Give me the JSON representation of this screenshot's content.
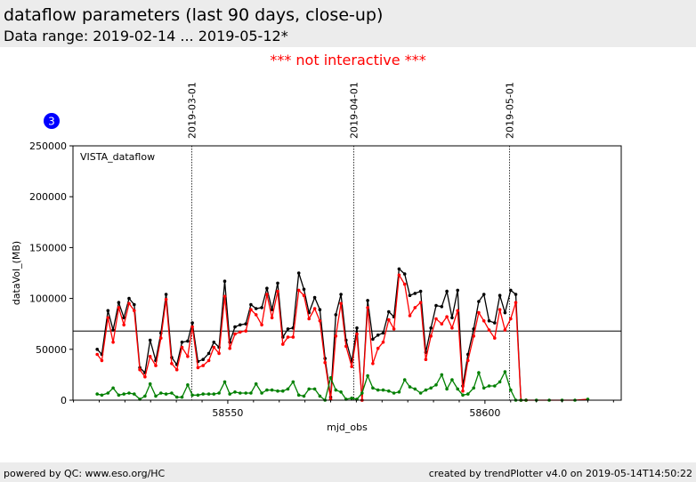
{
  "header": {
    "title": "dataflow parameters (last 90 days, close-up)",
    "subtitle": "Data range: 2019-02-14 ... 2019-05-12*",
    "notice": "*** not interactive ***"
  },
  "badge": {
    "label": "3",
    "color": "#0000ff"
  },
  "footer": {
    "left": "powered by QC: www.eso.org/HC",
    "right": "created by trendPlotter v4.0 on 2019-05-14T14:50:22"
  },
  "colors": {
    "black_series": "#000000",
    "red_series": "#ff0000",
    "green_series": "#008000",
    "reference_line": "#000000"
  },
  "chart_data": {
    "type": "line",
    "panel_label": "VISTA_dataflow",
    "xlabel": "mjd_obs",
    "ylabel": "dataVol_(MB)",
    "xlim": [
      58519.9,
      58626.5
    ],
    "ylim": [
      0,
      250000
    ],
    "x_ticks": [
      58550,
      58600
    ],
    "y_ticks": [
      0,
      50000,
      100000,
      150000,
      200000,
      250000
    ],
    "reference_y": 68000,
    "date_markers": [
      {
        "label": "2019-03-01",
        "x": 58543.0
      },
      {
        "label": "2019-04-01",
        "x": 58574.5
      },
      {
        "label": "2019-05-01",
        "x": 58604.8
      }
    ],
    "x": [
      58524.6,
      58525.5,
      58526.7,
      58527.7,
      58528.8,
      58529.8,
      58530.8,
      58531.8,
      58532.9,
      58533.9,
      58534.9,
      58536.0,
      58537.0,
      58538.0,
      58539.1,
      58540.1,
      58541.1,
      58542.2,
      58543.1,
      58544.2,
      58545.2,
      58546.3,
      58547.3,
      58548.3,
      58549.4,
      58550.4,
      58551.4,
      58552.4,
      58553.5,
      58554.5,
      58555.5,
      58556.6,
      58557.6,
      58558.6,
      58559.7,
      58560.7,
      58561.7,
      58562.7,
      58563.8,
      58564.8,
      58565.8,
      58566.9,
      58567.9,
      58568.9,
      58570.0,
      58571.0,
      58572.0,
      58573.0,
      58574.1,
      58575.1,
      58576.1,
      58577.2,
      58578.2,
      58579.2,
      58580.2,
      58581.3,
      58582.3,
      58583.3,
      58584.4,
      58585.4,
      58586.4,
      58587.5,
      58588.5,
      58589.5,
      58590.5,
      58591.6,
      58592.6,
      58593.6,
      58594.7,
      58595.7,
      58596.7,
      58597.8,
      58598.8,
      58599.8,
      58600.8,
      58601.9,
      58602.9,
      58603.9,
      58605.0,
      58606.0,
      58607.0,
      58608.0
    ],
    "series": [
      {
        "color": "#000000",
        "values": [
          50000,
          45000,
          88000,
          69000,
          96000,
          81000,
          100000,
          94000,
          32000,
          27000,
          59000,
          39000,
          66000,
          104000,
          42000,
          35000,
          57000,
          58000,
          76000,
          38000,
          40000,
          46000,
          57000,
          52000,
          117000,
          57000,
          72000,
          74000,
          75000,
          94000,
          90000,
          91000,
          110000,
          89000,
          115000,
          62000,
          70000,
          71000,
          125000,
          109000,
          86000,
          101000,
          89000,
          41000,
          3000,
          84000,
          104000,
          59000,
          38000,
          71000,
          0,
          98000,
          60000,
          64000,
          66000,
          87000,
          82000,
          129000,
          124000,
          103000,
          105000,
          107000,
          47000,
          71000,
          93000,
          92000,
          107000,
          81000,
          108000,
          14000,
          45000,
          70000,
          97000,
          104000,
          78000,
          76000,
          103000,
          86000,
          108000,
          104000,
          0,
          0
        ]
      },
      {
        "color": "#ff0000",
        "values": [
          45000,
          39000,
          81000,
          57000,
          91000,
          74000,
          95000,
          88000,
          30000,
          23000,
          43000,
          34000,
          61000,
          99000,
          36000,
          30000,
          52000,
          43000,
          72000,
          32000,
          34000,
          39000,
          52000,
          46000,
          102000,
          51000,
          65000,
          67000,
          68000,
          89000,
          84000,
          74000,
          104000,
          81000,
          107000,
          55000,
          62000,
          62000,
          108000,
          103000,
          80000,
          90000,
          78000,
          37000,
          1000,
          63000,
          95000,
          53000,
          33000,
          65000,
          0,
          91000,
          36000,
          51000,
          57000,
          79000,
          70000,
          123000,
          114000,
          83000,
          91000,
          96000,
          40000,
          63000,
          80000,
          75000,
          82000,
          71000,
          88000,
          9000,
          39000,
          63000,
          86000,
          78000,
          69000,
          61000,
          89000,
          69000,
          80000,
          96000,
          0,
          0
        ]
      },
      {
        "color": "#008000",
        "values": [
          6000,
          5000,
          7000,
          12000,
          5000,
          6000,
          7000,
          6000,
          1000,
          4000,
          16000,
          4000,
          7000,
          6000,
          7000,
          3000,
          3000,
          15000,
          5000,
          5000,
          6000,
          6000,
          6000,
          7000,
          18000,
          6000,
          8000,
          7000,
          7000,
          7000,
          16000,
          7000,
          10000,
          10000,
          9000,
          9000,
          11000,
          18000,
          5000,
          4000,
          11000,
          11000,
          4000,
          0,
          22000,
          10000,
          8000,
          1000,
          2000,
          1000,
          7000,
          24000,
          12000,
          10000,
          10000,
          9000,
          7000,
          8000,
          20000,
          13000,
          11000,
          7000,
          10000,
          12000,
          15000,
          25000,
          11000,
          20000,
          11000,
          5000,
          6000,
          12000,
          27000,
          12000,
          14000,
          14000,
          18000,
          28000,
          10000,
          0,
          0,
          0
        ]
      }
    ],
    "tail_x": [
      58610.0,
      58612.5,
      58615.0,
      58617.5,
      58620.0
    ],
    "tail_values": [
      0,
      0,
      0,
      0,
      1000
    ]
  }
}
